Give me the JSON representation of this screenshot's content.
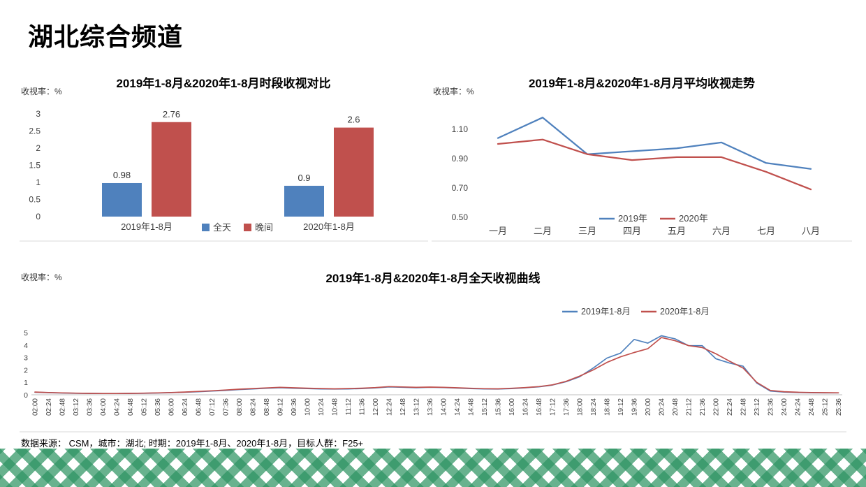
{
  "page": {
    "title": "湖北综合频道",
    "source_note": "数据来源： CSM，城市：湖北; 时期：2019年1-8月、2020年1-8月，目标人群：F25+"
  },
  "colors": {
    "series_blue": "#4F81BD",
    "series_red": "#C0504D",
    "band_green": "#2E9463",
    "axis_text": "#404040",
    "border_gray": "#D9D9D9"
  },
  "chart_data": [
    {
      "type": "bar",
      "title": "2019年1-8月&2020年1-8月时段收视对比",
      "unit_label": "收视率：%",
      "categories": [
        "2019年1-8月",
        "2020年1-8月"
      ],
      "series": [
        {
          "name": "全天",
          "color": "#4F81BD",
          "values": [
            0.98,
            0.9
          ]
        },
        {
          "name": "晚间",
          "color": "#C0504D",
          "values": [
            2.76,
            2.6
          ]
        }
      ],
      "data_labels": [
        [
          "0.98",
          "0.9"
        ],
        [
          "2.76",
          "2.6"
        ]
      ],
      "ylim": [
        0,
        3
      ],
      "yticks": [
        0,
        0.5,
        1,
        1.5,
        2,
        2.5,
        3
      ],
      "ytick_labels": [
        "0",
        "0.5",
        "1",
        "1.5",
        "2",
        "2.5",
        "3"
      ],
      "legend_position": "bottom-inline",
      "grid": false
    },
    {
      "type": "line",
      "title": "2019年1-8月&2020年1-8月月平均收视走势",
      "unit_label": "收视率：%",
      "categories": [
        "一月",
        "二月",
        "三月",
        "四月",
        "五月",
        "六月",
        "七月",
        "八月"
      ],
      "series": [
        {
          "name": "2019年",
          "color": "#4F81BD",
          "values": [
            1.04,
            1.18,
            0.93,
            0.95,
            0.97,
            1.01,
            0.87,
            0.83
          ]
        },
        {
          "name": "2020年",
          "color": "#C0504D",
          "values": [
            1.0,
            1.03,
            0.93,
            0.89,
            0.91,
            0.91,
            0.81,
            0.69
          ]
        }
      ],
      "ylim": [
        0.5,
        1.2
      ],
      "yticks": [
        0.5,
        0.7,
        0.9,
        1.1
      ],
      "ytick_labels": [
        "0.50",
        "0.70",
        "0.90",
        "1.10"
      ],
      "legend_position": "bottom",
      "grid": false
    },
    {
      "type": "line",
      "title": "2019年1-8月&2020年1-8月全天收视曲线",
      "unit_label": "收视率：%",
      "categories": [
        "02:00",
        "02:24",
        "02:48",
        "03:12",
        "03:36",
        "04:00",
        "04:24",
        "04:48",
        "05:12",
        "05:36",
        "06:00",
        "06:24",
        "06:48",
        "07:12",
        "07:36",
        "08:00",
        "08:24",
        "08:48",
        "09:12",
        "09:36",
        "10:00",
        "10:24",
        "10:48",
        "11:12",
        "11:36",
        "12:00",
        "12:24",
        "12:48",
        "13:12",
        "13:36",
        "14:00",
        "14:24",
        "14:48",
        "15:12",
        "15:36",
        "16:00",
        "16:24",
        "16:48",
        "17:12",
        "17:36",
        "18:00",
        "18:24",
        "18:48",
        "19:12",
        "19:36",
        "20:00",
        "20:24",
        "20:48",
        "21:12",
        "21:36",
        "22:00",
        "22:24",
        "22:48",
        "23:12",
        "23:36",
        "24:00",
        "24:24",
        "24:48",
        "25:12",
        "25:36"
      ],
      "series": [
        {
          "name": "2019年1-8月",
          "color": "#4F81BD",
          "values": [
            0.2,
            0.17,
            0.14,
            0.12,
            0.11,
            0.1,
            0.1,
            0.11,
            0.12,
            0.14,
            0.17,
            0.2,
            0.25,
            0.3,
            0.35,
            0.42,
            0.47,
            0.52,
            0.57,
            0.53,
            0.5,
            0.47,
            0.46,
            0.47,
            0.5,
            0.55,
            0.63,
            0.6,
            0.57,
            0.6,
            0.58,
            0.54,
            0.5,
            0.47,
            0.46,
            0.5,
            0.56,
            0.64,
            0.78,
            1.05,
            1.45,
            2.15,
            2.95,
            3.35,
            4.45,
            4.15,
            4.75,
            4.5,
            3.95,
            3.95,
            2.9,
            2.55,
            2.3,
            0.95,
            0.3,
            0.22,
            0.18,
            0.16,
            0.15,
            0.15
          ]
        },
        {
          "name": "2020年1-8月",
          "color": "#C0504D",
          "values": [
            0.22,
            0.18,
            0.15,
            0.13,
            0.11,
            0.1,
            0.1,
            0.11,
            0.13,
            0.15,
            0.18,
            0.22,
            0.27,
            0.32,
            0.38,
            0.45,
            0.5,
            0.55,
            0.6,
            0.56,
            0.53,
            0.5,
            0.48,
            0.5,
            0.53,
            0.58,
            0.66,
            0.63,
            0.6,
            0.62,
            0.6,
            0.56,
            0.52,
            0.49,
            0.48,
            0.52,
            0.58,
            0.66,
            0.8,
            1.08,
            1.5,
            2.0,
            2.6,
            3.05,
            3.4,
            3.7,
            4.6,
            4.35,
            3.95,
            3.8,
            3.3,
            2.7,
            2.15,
            1.0,
            0.35,
            0.25,
            0.2,
            0.18,
            0.17,
            0.16
          ]
        }
      ],
      "ylim": [
        0,
        5
      ],
      "yticks": [
        0,
        1,
        2,
        3,
        4,
        5
      ],
      "ytick_labels": [
        "0",
        "1",
        "2",
        "3",
        "4",
        "5"
      ],
      "legend_position": "top",
      "grid": false
    }
  ]
}
